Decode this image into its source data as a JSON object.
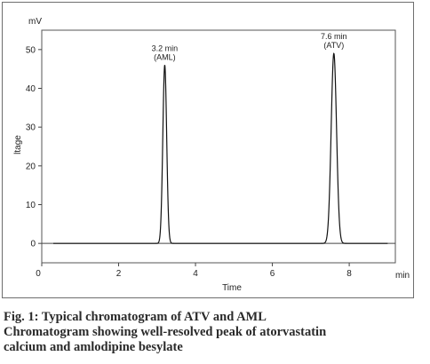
{
  "chart_data": {
    "type": "line",
    "yunit": "mV",
    "ylabel": "ltage",
    "xlabel": "Time",
    "xunit": "min",
    "xlim": [
      0,
      9.2
    ],
    "ylim": [
      -5,
      55
    ],
    "xticks": [
      0,
      2,
      4,
      6,
      8
    ],
    "yticks": [
      0,
      10,
      20,
      30,
      40,
      50
    ],
    "grid": false,
    "baseline": 0,
    "peaks": [
      {
        "time": 3.2,
        "height": 46,
        "width": 0.1,
        "label_time": "3.2 min",
        "label_name": "(AML)"
      },
      {
        "time": 7.6,
        "height": 49,
        "width": 0.14,
        "label_time": "7.6 min",
        "label_name": "(ATV)"
      }
    ]
  },
  "caption": {
    "line1": "Fig. 1: Typical chromatogram of ATV and AML",
    "line2": "Chromatogram showing well-resolved peak of atorvastatin",
    "line3": "calcium and amlodipine besylate"
  }
}
